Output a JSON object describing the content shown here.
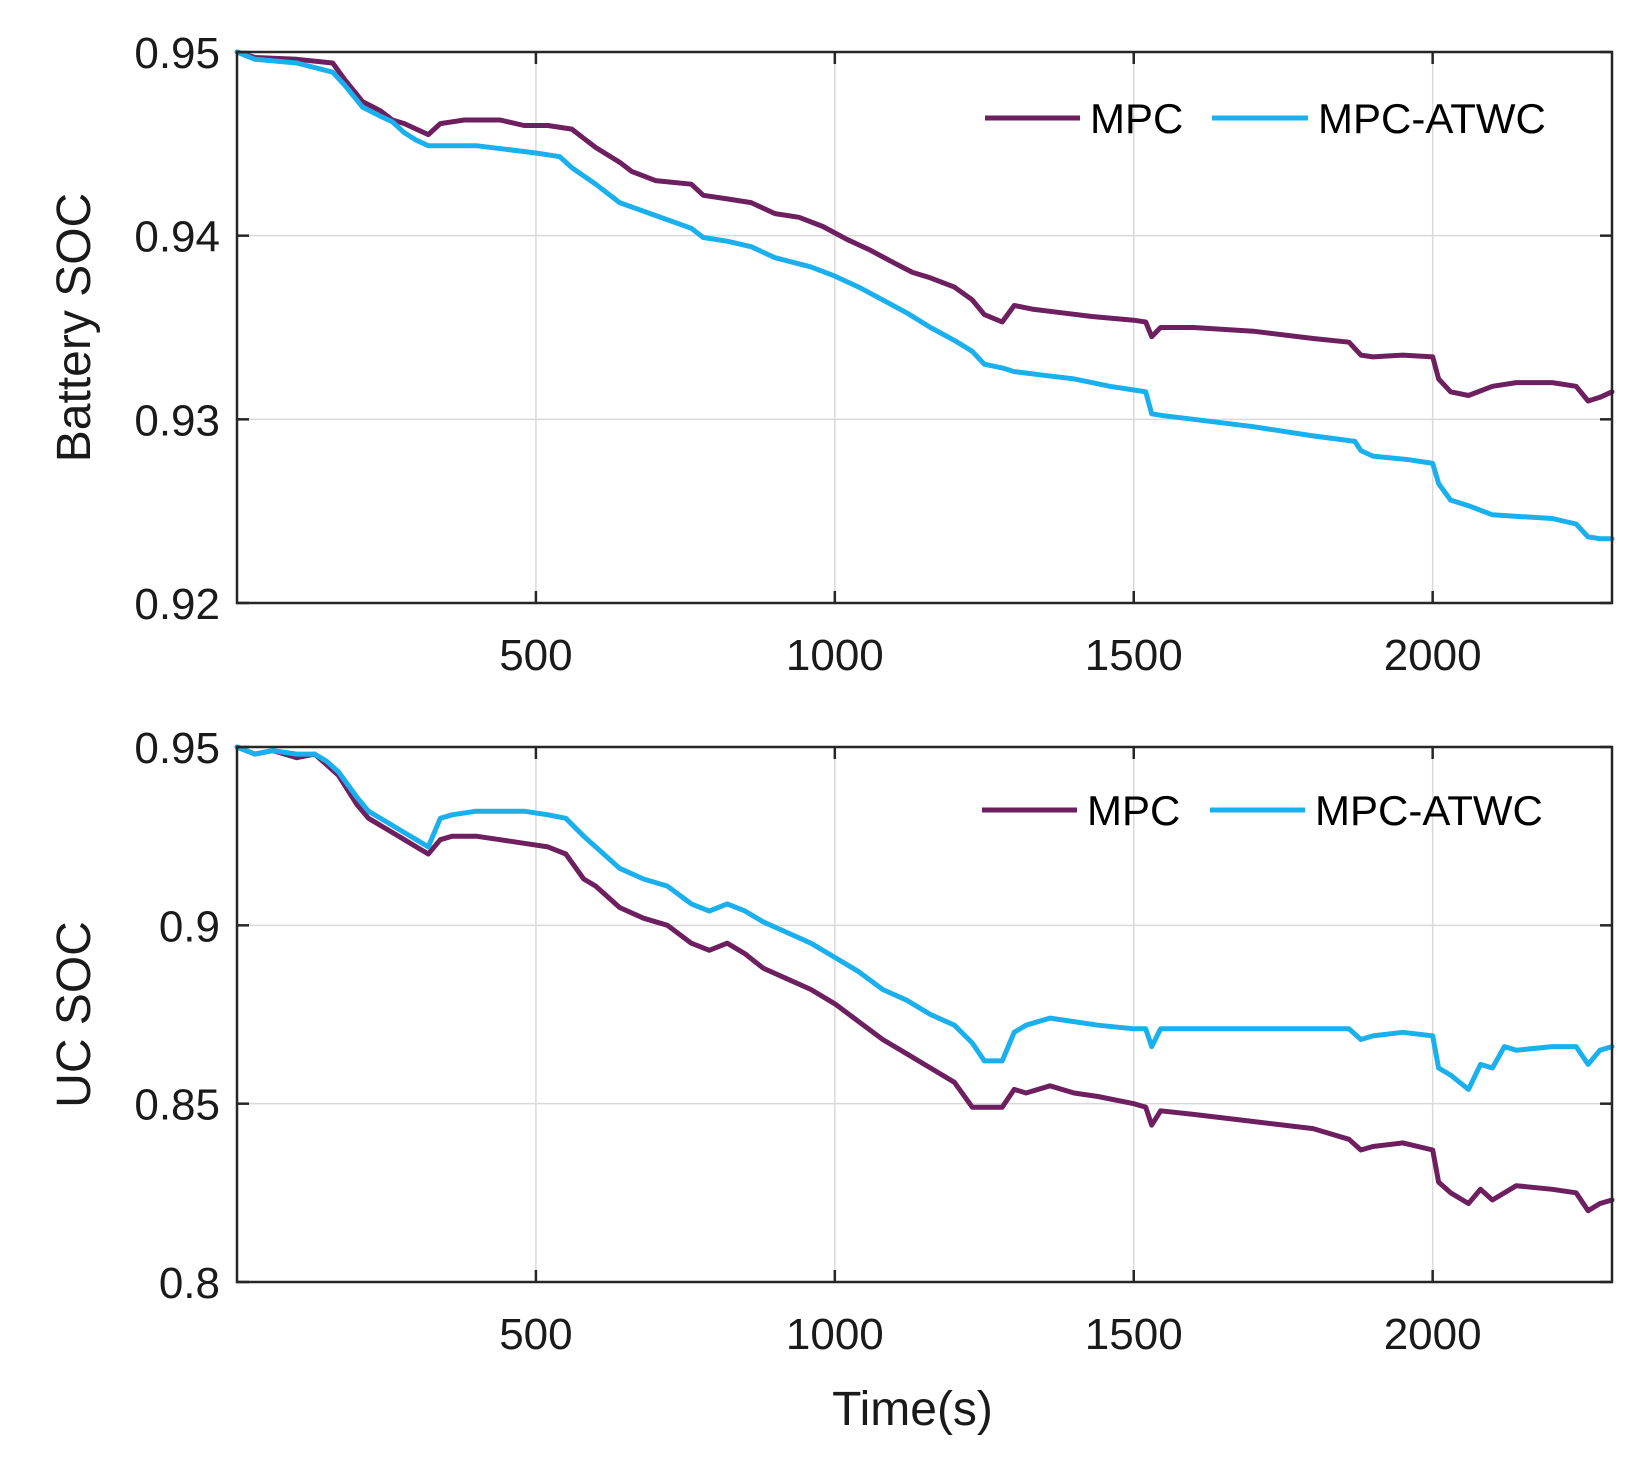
{
  "chart_data": [
    {
      "type": "line",
      "title": "",
      "xlabel": "",
      "ylabel": "Battery SOC",
      "xlim": [
        0,
        2300
      ],
      "ylim": [
        0.92,
        0.95
      ],
      "xticks": [
        500,
        1000,
        1500,
        2000
      ],
      "xtick_labels": [
        "500",
        "1000",
        "1500",
        "2000"
      ],
      "yticks": [
        0.92,
        0.93,
        0.94,
        0.95
      ],
      "ytick_labels": [
        "0.92",
        "0.93",
        "0.94",
        "0.95"
      ],
      "grid": true,
      "legend": "top-right, horizontal",
      "series": [
        {
          "name": "MPC",
          "color": "#6e1f5f",
          "x": [
            0,
            30,
            100,
            160,
            180,
            210,
            240,
            260,
            280,
            300,
            320,
            340,
            360,
            380,
            400,
            440,
            480,
            520,
            560,
            580,
            600,
            640,
            660,
            700,
            760,
            780,
            820,
            860,
            900,
            940,
            980,
            1020,
            1060,
            1100,
            1130,
            1160,
            1200,
            1230,
            1250,
            1280,
            1300,
            1330,
            1380,
            1430,
            1500,
            1520,
            1530,
            1545,
            1600,
            1700,
            1800,
            1860,
            1880,
            1900,
            1950,
            2000,
            2010,
            2030,
            2060,
            2100,
            2140,
            2200,
            2240,
            2260,
            2280,
            2300
          ],
          "y": [
            0.95,
            0.9497,
            0.9496,
            0.9494,
            0.9485,
            0.9473,
            0.9468,
            0.9463,
            0.9461,
            0.9458,
            0.9455,
            0.9461,
            0.9462,
            0.9463,
            0.9463,
            0.9463,
            0.946,
            0.946,
            0.9458,
            0.9453,
            0.9448,
            0.944,
            0.9435,
            0.943,
            0.9428,
            0.9422,
            0.942,
            0.9418,
            0.9412,
            0.941,
            0.9405,
            0.9398,
            0.9392,
            0.9385,
            0.938,
            0.9377,
            0.9372,
            0.9365,
            0.9357,
            0.9353,
            0.9362,
            0.936,
            0.9358,
            0.9356,
            0.9354,
            0.9353,
            0.9345,
            0.935,
            0.935,
            0.9348,
            0.9344,
            0.9342,
            0.9335,
            0.9334,
            0.9335,
            0.9334,
            0.9322,
            0.9315,
            0.9313,
            0.9318,
            0.932,
            0.932,
            0.9318,
            0.931,
            0.9312,
            0.9315
          ]
        },
        {
          "name": "MPC-ATWC",
          "color": "#1ab0ee",
          "x": [
            0,
            30,
            100,
            160,
            180,
            210,
            240,
            260,
            280,
            300,
            320,
            400,
            450,
            500,
            540,
            560,
            600,
            640,
            700,
            760,
            780,
            820,
            860,
            900,
            960,
            1000,
            1040,
            1080,
            1120,
            1160,
            1200,
            1230,
            1250,
            1280,
            1300,
            1350,
            1400,
            1430,
            1460,
            1520,
            1530,
            1550,
            1600,
            1700,
            1800,
            1870,
            1880,
            1900,
            1960,
            2000,
            2010,
            2030,
            2060,
            2100,
            2150,
            2200,
            2240,
            2260,
            2280,
            2300
          ],
          "y": [
            0.95,
            0.9496,
            0.9494,
            0.9489,
            0.9482,
            0.947,
            0.9465,
            0.9462,
            0.9456,
            0.9452,
            0.9449,
            0.9449,
            0.9447,
            0.9445,
            0.9443,
            0.9437,
            0.9428,
            0.9418,
            0.9411,
            0.9404,
            0.9399,
            0.9397,
            0.9394,
            0.9388,
            0.9383,
            0.9378,
            0.9372,
            0.9365,
            0.9358,
            0.935,
            0.9343,
            0.9337,
            0.933,
            0.9328,
            0.9326,
            0.9324,
            0.9322,
            0.932,
            0.9318,
            0.9315,
            0.9303,
            0.9302,
            0.93,
            0.9296,
            0.9291,
            0.9288,
            0.9283,
            0.928,
            0.9278,
            0.9276,
            0.9265,
            0.9256,
            0.9253,
            0.9248,
            0.9247,
            0.9246,
            0.9243,
            0.9236,
            0.9235,
            0.9235
          ]
        }
      ]
    },
    {
      "type": "line",
      "title": "",
      "xlabel": "Time(s)",
      "ylabel": "UC SOC",
      "xlim": [
        0,
        2300
      ],
      "ylim": [
        0.8,
        0.95
      ],
      "xticks": [
        500,
        1000,
        1500,
        2000
      ],
      "xtick_labels": [
        "500",
        "1000",
        "1500",
        "2000"
      ],
      "yticks": [
        0.8,
        0.85,
        0.9,
        0.95
      ],
      "ytick_labels": [
        "0.8",
        "0.85",
        "0.9",
        "0.95"
      ],
      "grid": true,
      "legend": "top-right, horizontal",
      "series": [
        {
          "name": "MPC",
          "color": "#6e1f5f",
          "x": [
            0,
            30,
            60,
            100,
            130,
            150,
            170,
            200,
            220,
            250,
            280,
            300,
            320,
            340,
            360,
            400,
            440,
            480,
            520,
            550,
            580,
            600,
            640,
            680,
            720,
            760,
            790,
            820,
            850,
            880,
            920,
            960,
            1000,
            1040,
            1080,
            1120,
            1160,
            1200,
            1230,
            1250,
            1280,
            1300,
            1320,
            1360,
            1400,
            1440,
            1500,
            1520,
            1530,
            1545,
            1600,
            1700,
            1800,
            1860,
            1880,
            1900,
            1950,
            2000,
            2010,
            2030,
            2060,
            2080,
            2100,
            2140,
            2200,
            2240,
            2260,
            2280,
            2300
          ],
          "y": [
            0.95,
            0.948,
            0.949,
            0.947,
            0.948,
            0.945,
            0.942,
            0.934,
            0.93,
            0.927,
            0.924,
            0.922,
            0.92,
            0.924,
            0.925,
            0.925,
            0.924,
            0.923,
            0.922,
            0.92,
            0.913,
            0.911,
            0.905,
            0.902,
            0.9,
            0.895,
            0.893,
            0.895,
            0.892,
            0.888,
            0.885,
            0.882,
            0.878,
            0.873,
            0.868,
            0.864,
            0.86,
            0.856,
            0.849,
            0.849,
            0.849,
            0.854,
            0.853,
            0.855,
            0.853,
            0.852,
            0.85,
            0.849,
            0.844,
            0.848,
            0.847,
            0.845,
            0.843,
            0.84,
            0.837,
            0.838,
            0.839,
            0.837,
            0.828,
            0.825,
            0.822,
            0.826,
            0.823,
            0.827,
            0.826,
            0.825,
            0.82,
            0.822,
            0.823
          ]
        },
        {
          "name": "MPC-ATWC",
          "color": "#1ab0ee",
          "x": [
            0,
            30,
            60,
            100,
            130,
            150,
            170,
            200,
            220,
            250,
            280,
            300,
            320,
            340,
            360,
            400,
            440,
            480,
            520,
            550,
            580,
            600,
            640,
            680,
            720,
            760,
            790,
            820,
            850,
            880,
            920,
            960,
            1000,
            1040,
            1080,
            1120,
            1160,
            1200,
            1230,
            1250,
            1280,
            1300,
            1320,
            1360,
            1400,
            1440,
            1500,
            1520,
            1530,
            1545,
            1600,
            1700,
            1800,
            1860,
            1880,
            1900,
            1950,
            2000,
            2010,
            2030,
            2060,
            2080,
            2100,
            2120,
            2140,
            2200,
            2240,
            2260,
            2280,
            2300
          ],
          "y": [
            0.95,
            0.948,
            0.949,
            0.948,
            0.948,
            0.946,
            0.943,
            0.936,
            0.932,
            0.929,
            0.926,
            0.924,
            0.922,
            0.93,
            0.931,
            0.932,
            0.932,
            0.932,
            0.931,
            0.93,
            0.925,
            0.922,
            0.916,
            0.913,
            0.911,
            0.906,
            0.904,
            0.906,
            0.904,
            0.901,
            0.898,
            0.895,
            0.891,
            0.887,
            0.882,
            0.879,
            0.875,
            0.872,
            0.867,
            0.862,
            0.862,
            0.87,
            0.872,
            0.874,
            0.873,
            0.872,
            0.871,
            0.871,
            0.866,
            0.871,
            0.871,
            0.871,
            0.871,
            0.871,
            0.868,
            0.869,
            0.87,
            0.869,
            0.86,
            0.858,
            0.854,
            0.861,
            0.86,
            0.866,
            0.865,
            0.866,
            0.866,
            0.861,
            0.865,
            0.866
          ]
        }
      ]
    }
  ]
}
